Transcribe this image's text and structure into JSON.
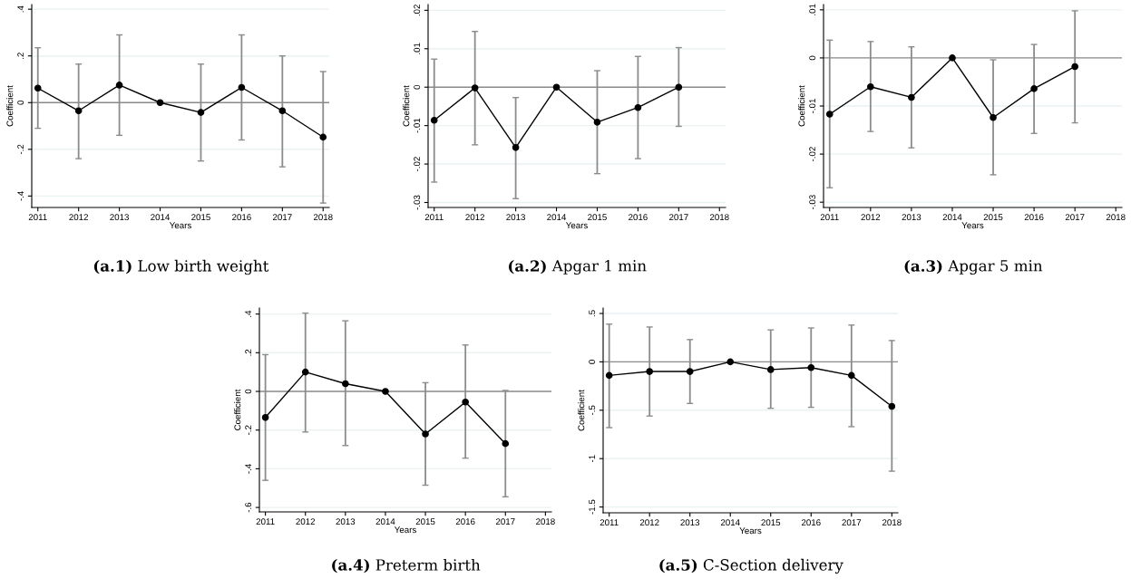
{
  "chart_data": [
    {
      "type": "line",
      "title": "(a.1) Low birth weight",
      "xlabel": "Years",
      "ylabel": "Coefficient",
      "x": [
        2011,
        2012,
        2013,
        2014,
        2015,
        2016,
        2017,
        2018
      ],
      "series": [
        {
          "color": "#000000",
          "values": [
            0.062,
            -0.035,
            0.075,
            0,
            -0.042,
            0.065,
            -0.035,
            -0.148
          ],
          "errors": [
            [
              -0.11,
              0.235
            ],
            [
              -0.24,
              0.165
            ],
            [
              -0.14,
              0.29
            ],
            null,
            [
              -0.25,
              0.165
            ],
            [
              -0.16,
              0.29
            ],
            [
              -0.275,
              0.2
            ],
            [
              -0.43,
              0.133
            ]
          ]
        }
      ],
      "xlim": [
        2010.85,
        2018.15
      ],
      "xticks": [
        2011,
        2012,
        2013,
        2014,
        2015,
        2016,
        2017,
        2018
      ],
      "ylim": [
        -0.449,
        0.42
      ],
      "yticks": [
        {
          "value": -0.4,
          "label": "-.4"
        },
        {
          "value": -0.2,
          "label": "-.2"
        },
        {
          "value": 0,
          "label": "0"
        },
        {
          "value": 0.2,
          "label": ".2"
        },
        {
          "value": 0.4,
          "label": ".4"
        }
      ],
      "ref_lines": [
        {
          "axis": "y",
          "value": 0,
          "color": "#8c8c8c"
        }
      ],
      "grid": "y",
      "marker": "circle",
      "line_style": "solid"
    },
    {
      "type": "line",
      "title": "(a.2) Apgar 1 min",
      "xlabel": "Years",
      "ylabel": "Coefficient",
      "x": [
        2011,
        2012,
        2013,
        2014,
        2015,
        2016,
        2017
      ],
      "series": [
        {
          "color": "#000000",
          "values": [
            -0.0086,
            -0.0002,
            -0.0157,
            0,
            -0.0091,
            -0.0053,
            0
          ],
          "errors": [
            [
              -0.0247,
              0.0073
            ],
            [
              -0.015,
              0.0145
            ],
            [
              -0.029,
              -0.0027
            ],
            null,
            [
              -0.0225,
              0.0043
            ],
            [
              -0.0186,
              0.008
            ],
            [
              -0.0102,
              0.0103
            ]
          ]
        }
      ],
      "xlim": [
        2010.85,
        2018.15
      ],
      "xticks": [
        2011,
        2012,
        2013,
        2014,
        2015,
        2016,
        2017,
        2018
      ],
      "ylim": [
        -0.0313,
        0.0215
      ],
      "yticks": [
        {
          "value": -0.03,
          "label": "-.03"
        },
        {
          "value": -0.02,
          "label": "-.02"
        },
        {
          "value": -0.01,
          "label": "-.01"
        },
        {
          "value": 0,
          "label": "0"
        },
        {
          "value": 0.01,
          "label": ".01"
        },
        {
          "value": 0.02,
          "label": ".02"
        }
      ],
      "ref_lines": [
        {
          "axis": "y",
          "value": 0,
          "color": "#8c8c8c"
        }
      ],
      "grid": "y",
      "marker": "circle",
      "line_style": "solid"
    },
    {
      "type": "line",
      "title": "(a.3) Apgar 5 min",
      "xlabel": "Years",
      "ylabel": "Coefficient",
      "x": [
        2011,
        2012,
        2013,
        2014,
        2015,
        2016,
        2017
      ],
      "series": [
        {
          "color": "#000000",
          "values": [
            -0.0117,
            -0.006,
            -0.0082,
            0,
            -0.0124,
            -0.0064,
            -0.0018
          ],
          "errors": [
            [
              -0.027,
              0.0037
            ],
            [
              -0.0153,
              0.0034
            ],
            [
              -0.0187,
              0.0023
            ],
            null,
            [
              -0.0243,
              -0.0004
            ],
            [
              -0.0157,
              0.0028
            ],
            [
              -0.0135,
              0.0098
            ]
          ]
        }
      ],
      "xlim": [
        2010.85,
        2018.15
      ],
      "xticks": [
        2011,
        2012,
        2013,
        2014,
        2015,
        2016,
        2017,
        2018
      ],
      "ylim": [
        -0.0311,
        0.0111
      ],
      "yticks": [
        {
          "value": -0.03,
          "label": "-.03"
        },
        {
          "value": -0.02,
          "label": "-.02"
        },
        {
          "value": -0.01,
          "label": "-.01"
        },
        {
          "value": 0,
          "label": "0"
        },
        {
          "value": 0.01,
          "label": ".01"
        }
      ],
      "ref_lines": [
        {
          "axis": "y",
          "value": 0,
          "color": "#8c8c8c"
        }
      ],
      "grid": "y",
      "marker": "circle",
      "line_style": "solid"
    },
    {
      "type": "line",
      "title": "(a.4) Preterm birth",
      "xlabel": "Years",
      "ylabel": "Coefficient",
      "x": [
        2011,
        2012,
        2013,
        2014,
        2015,
        2016,
        2017
      ],
      "series": [
        {
          "color": "#000000",
          "values": [
            -0.135,
            0.1,
            0.04,
            0,
            -0.22,
            -0.055,
            -0.27
          ],
          "errors": [
            [
              -0.46,
              0.19
            ],
            [
              -0.21,
              0.405
            ],
            [
              -0.28,
              0.365
            ],
            null,
            [
              -0.485,
              0.045
            ],
            [
              -0.345,
              0.24
            ],
            [
              -0.545,
              0.005
            ]
          ]
        }
      ],
      "xlim": [
        2010.85,
        2018.15
      ],
      "xticks": [
        2011,
        2012,
        2013,
        2014,
        2015,
        2016,
        2017,
        2018
      ],
      "ylim": [
        -0.623,
        0.431
      ],
      "yticks": [
        {
          "value": -0.6,
          "label": "-.6"
        },
        {
          "value": -0.4,
          "label": "-.4"
        },
        {
          "value": -0.2,
          "label": "-.2"
        },
        {
          "value": 0,
          "label": "0"
        },
        {
          "value": 0.2,
          "label": ".2"
        },
        {
          "value": 0.4,
          "label": ".4"
        }
      ],
      "ref_lines": [
        {
          "axis": "y",
          "value": 0,
          "color": "#8c8c8c"
        }
      ],
      "grid": "y",
      "marker": "circle",
      "line_style": "solid"
    },
    {
      "type": "line",
      "title": "(a.5) C-Section delivery",
      "xlabel": "Years",
      "ylabel": "Coefficient",
      "x": [
        2011,
        2012,
        2013,
        2014,
        2015,
        2016,
        2017,
        2018
      ],
      "series": [
        {
          "color": "#000000",
          "values": [
            -0.14,
            -0.1,
            -0.1,
            0,
            -0.08,
            -0.06,
            -0.14,
            -0.46
          ],
          "errors": [
            [
              -0.68,
              0.39
            ],
            [
              -0.56,
              0.36
            ],
            [
              -0.43,
              0.23
            ],
            null,
            [
              -0.48,
              0.33
            ],
            [
              -0.47,
              0.35
            ],
            [
              -0.67,
              0.38
            ],
            [
              -1.13,
              0.22
            ]
          ]
        }
      ],
      "xlim": [
        2010.85,
        2018.15
      ],
      "xticks": [
        2011,
        2012,
        2013,
        2014,
        2015,
        2016,
        2017,
        2018
      ],
      "ylim": [
        -1.56,
        0.556
      ],
      "yticks": [
        {
          "value": -1.5,
          "label": "-1.5"
        },
        {
          "value": -1,
          "label": "-1"
        },
        {
          "value": -0.5,
          "label": "-.5"
        },
        {
          "value": 0,
          "label": "0"
        },
        {
          "value": 0.5,
          "label": ".5"
        }
      ],
      "ref_lines": [
        {
          "axis": "y",
          "value": 0,
          "color": "#8c8c8c"
        }
      ],
      "grid": "y",
      "marker": "circle",
      "line_style": "solid"
    }
  ]
}
